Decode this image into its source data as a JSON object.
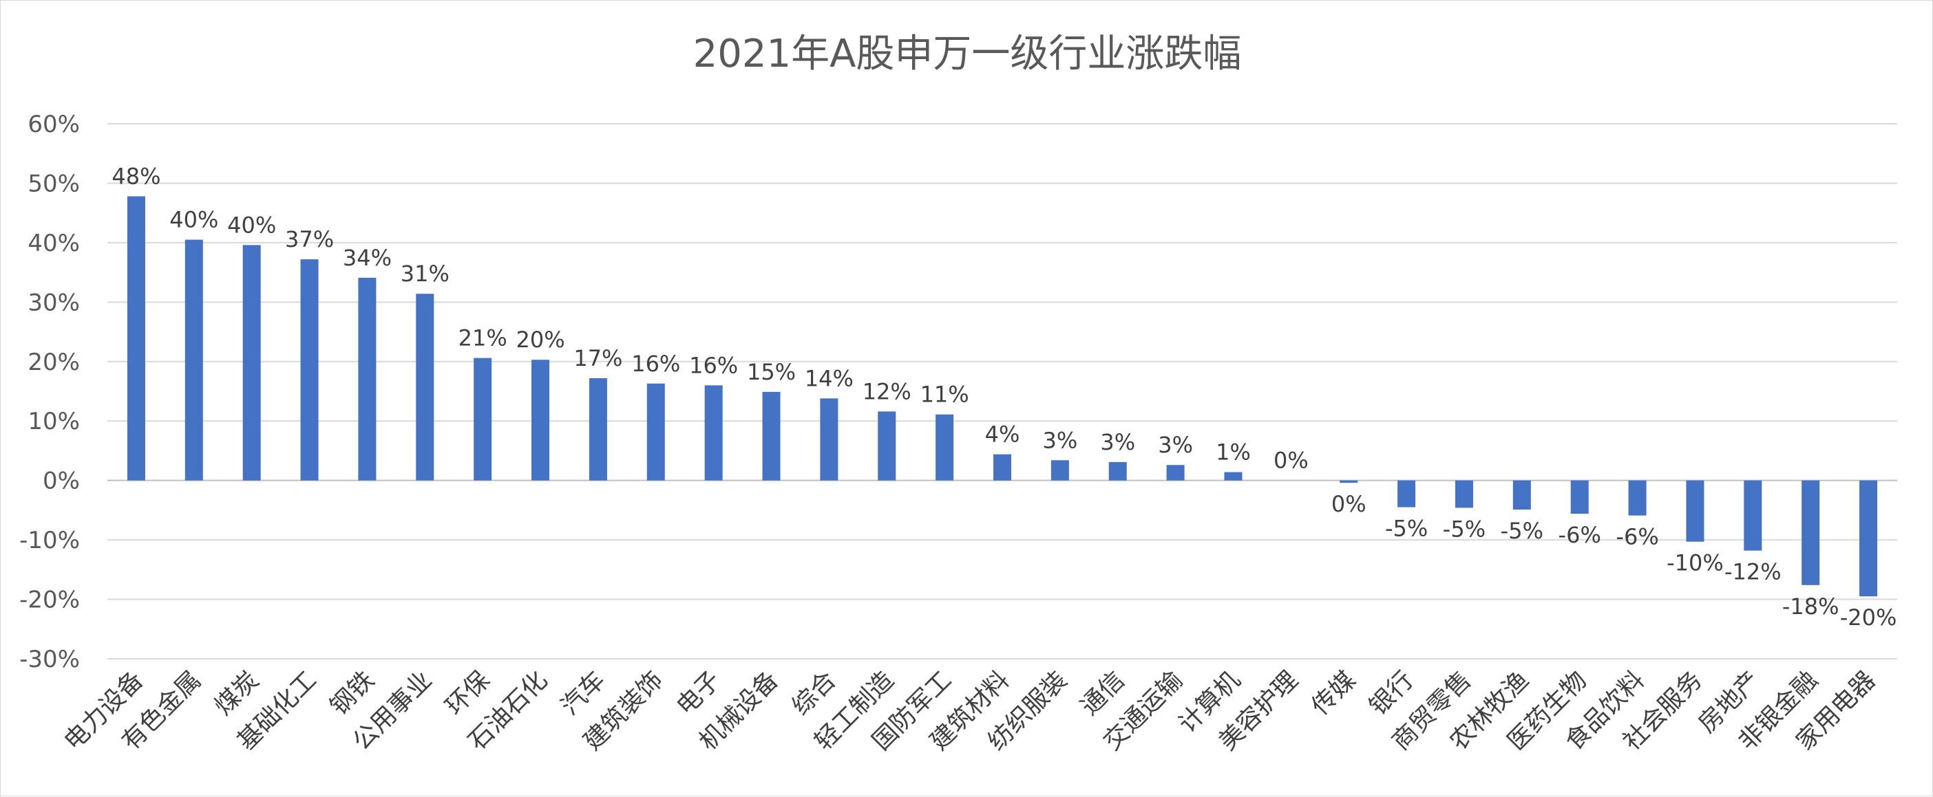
{
  "chart_data": {
    "type": "bar",
    "title": "2021年A股申万一级行业涨跌幅",
    "xlabel": "",
    "ylabel": "",
    "ylim": [
      -30,
      60
    ],
    "ytick_step": 10,
    "grid": true,
    "legend": "none",
    "bar_color": "#4472C4",
    "categories": [
      "电力设备",
      "有色金属",
      "煤炭",
      "基础化工",
      "钢铁",
      "公用事业",
      "环保",
      "石油石化",
      "汽车",
      "建筑装饰",
      "电子",
      "机械设备",
      "综合",
      "轻工制造",
      "国防军工",
      "建筑材料",
      "纺织服装",
      "通信",
      "交通运输",
      "计算机",
      "美容护理",
      "传媒",
      "银行",
      "商贸零售",
      "农林牧渔",
      "医药生物",
      "食品饮料",
      "社会服务",
      "房地产",
      "非银金融",
      "家用电器"
    ],
    "values": [
      47.8,
      40.5,
      39.6,
      37.2,
      34.1,
      31.4,
      20.6,
      20.3,
      17.2,
      16.3,
      16.0,
      14.9,
      13.8,
      11.6,
      11.1,
      4.4,
      3.4,
      3.1,
      2.6,
      1.4,
      0.0,
      -0.4,
      -4.5,
      -4.6,
      -4.9,
      -5.6,
      -5.9,
      -10.3,
      -11.8,
      -17.6,
      -19.5
    ],
    "labels": [
      "48%",
      "40%",
      "40%",
      "37%",
      "34%",
      "31%",
      "21%",
      "20%",
      "17%",
      "16%",
      "16%",
      "15%",
      "14%",
      "12%",
      "11%",
      "4%",
      "3%",
      "3%",
      "3%",
      "1%",
      "0%",
      "0%",
      "-5%",
      "-5%",
      "-5%",
      "-6%",
      "-6%",
      "-10%",
      "-12%",
      "-18%",
      "-20%"
    ],
    "ytick_labels": [
      "60%",
      "50%",
      "40%",
      "30%",
      "20%",
      "10%",
      "0%",
      "-10%",
      "-20%",
      "-30%"
    ]
  }
}
